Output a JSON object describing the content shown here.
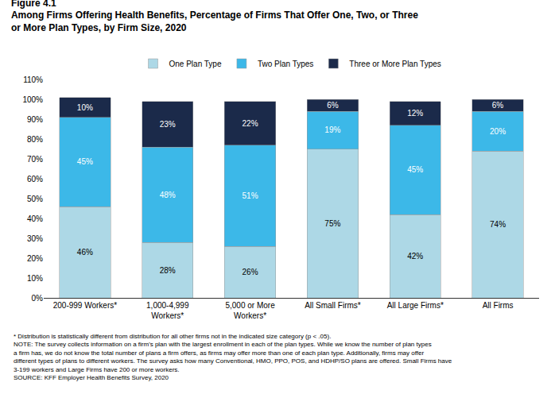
{
  "chart_data": {
    "type": "bar",
    "title": "Figure 4.1",
    "subtitle": "Among Firms Offering Health Benefits, Percentage of Firms That Offer One, Two, or Three\nor More Plan Types, by Firm Size, 2020",
    "categories": [
      "200-999 Workers*",
      "1,000-4,999\nWorkers*",
      "5,000 or More\nWorkers*",
      "All Small Firms*",
      "All Large Firms*",
      "All Firms"
    ],
    "series": [
      {
        "name": "One Plan Type",
        "color": "#add8e6",
        "values": [
          46,
          28,
          26,
          75,
          42,
          74
        ],
        "value_labels": [
          "46%",
          "28%",
          "26%",
          "75%",
          "42%",
          "74%"
        ]
      },
      {
        "name": "Two Plan Types",
        "color": "#3cb8e8",
        "values": [
          45,
          48,
          51,
          19,
          45,
          20
        ],
        "value_labels": [
          "45%",
          "48%",
          "51%",
          "19%",
          "45%",
          "20%"
        ]
      },
      {
        "name": "Three or More Plan Types",
        "color": "#1b2a4a",
        "values": [
          10,
          23,
          22,
          6,
          12,
          6
        ],
        "value_labels": [
          "10%",
          "23%",
          "22%",
          "6%",
          "12%",
          "6%"
        ]
      }
    ],
    "stacked": true,
    "data_labels": true,
    "ylim": [
      0,
      110
    ],
    "yticks": [
      {
        "value": 0,
        "label": "0%"
      },
      {
        "value": 10,
        "label": "10%"
      },
      {
        "value": 20,
        "label": "20%"
      },
      {
        "value": 30,
        "label": "30%"
      },
      {
        "value": 40,
        "label": "40%"
      },
      {
        "value": 50,
        "label": "50%"
      },
      {
        "value": 60,
        "label": "60%"
      },
      {
        "value": 70,
        "label": "70%"
      },
      {
        "value": 80,
        "label": "80%"
      },
      {
        "value": 90,
        "label": "90%"
      },
      {
        "value": 100,
        "label": "100%"
      },
      {
        "value": 110,
        "label": "110%"
      }
    ],
    "grid": false,
    "legend": "top",
    "annotations": [
      "* Distribution is statistically different from distribution for all other firms not in the indicated size category (p < .05).",
      "NOTE: The survey collects information on a firm's plan with the largest enrollment in each of the plan types. While we know the number of plan types",
      "a firm has, we do not know the total number of plans a firm offers, as firms may offer more than one of each plan type. Additionally, firms may offer",
      "different types of plans to different workers. The survey asks how many Conventional, HMO, PPO, POS, and HDHP/SO plans are offered. Small Firms have",
      "3-199 workers and Large Firms have 200 or more workers.",
      "SOURCE: KFF Employer Health Benefits Survey, 2020"
    ]
  }
}
